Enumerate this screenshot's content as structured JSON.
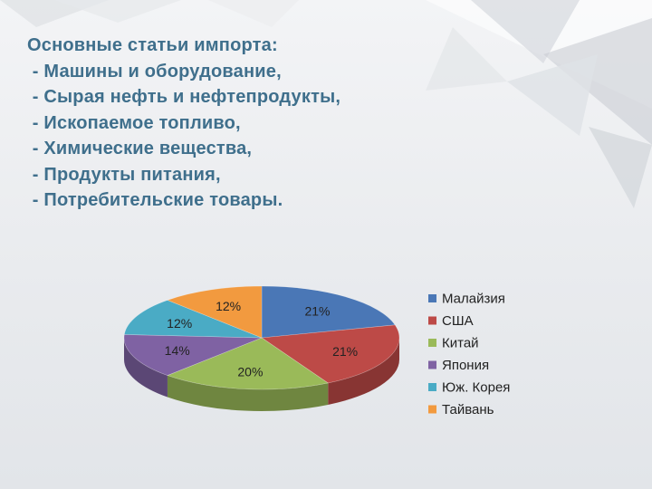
{
  "slide": {
    "heading": "Основные статьи импорта:",
    "items": [
      " - Машины и оборудование,",
      " - Сырая нефть и нефтепродукты,",
      " - Ископаемое топливо,",
      " - Химические вещества,",
      " - Продукты питания,",
      " - Потребительские товары."
    ]
  },
  "chart_data": {
    "type": "pie",
    "style": "3d",
    "title": "",
    "categories": [
      "Малайзия",
      "США",
      "Китай",
      "Япония",
      "Юж. Корея",
      "Тайвань"
    ],
    "values": [
      21,
      21,
      20,
      14,
      12,
      12
    ],
    "data_labels": [
      "21%",
      "21%",
      "20%",
      "14%",
      "12%",
      "12%"
    ],
    "colors": [
      "#4a77b6",
      "#bd4a47",
      "#9aba59",
      "#7f62a3",
      "#4aabc5",
      "#f29a3f"
    ],
    "legend": "right"
  }
}
